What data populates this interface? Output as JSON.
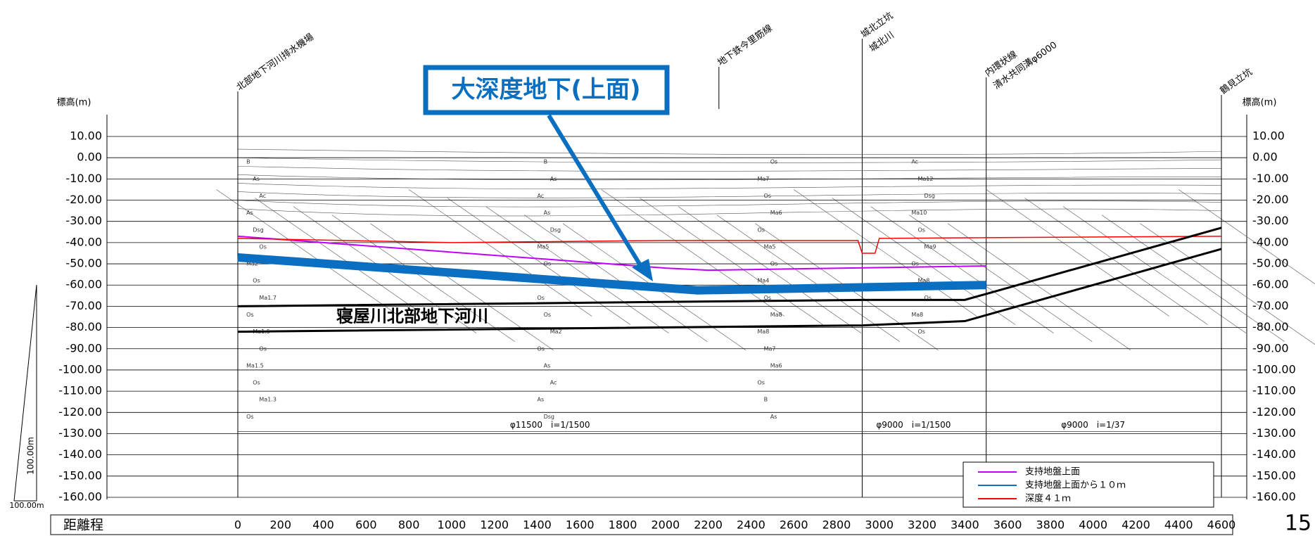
{
  "chart_data": {
    "type": "line",
    "y_axis_label": "標高(m)",
    "y2_axis_label": "標高(m)",
    "x_axis_label": "距離程",
    "callout": "大深度地下(上面)",
    "tunnel_label": "寝屋川北部地下河川",
    "sites": [
      "北部地下河川排水機場",
      "地下鉄今里筋線",
      "城北立坑",
      "城北川",
      "内環状線",
      "清水共同溝φ6000",
      "鶴見立坑"
    ],
    "pipe_labels": [
      "φ11500　i=1/1500",
      "φ9000　i=1/1500",
      "φ9000　i=1/37"
    ],
    "scale_labels": [
      "100.00m",
      "100.00m"
    ],
    "page_number": "15",
    "soil_labels": [
      "B",
      "As",
      "Ac",
      "As",
      "Dsg",
      "Os",
      "Ma2",
      "Os",
      "Ma1.7",
      "Os",
      "Ma1.5",
      "Os",
      "Ma1.5",
      "Os",
      "Ma1.3",
      "Os",
      "B",
      "As",
      "Ac",
      "As",
      "Dsg",
      "Ma5",
      "Os",
      "Ma4",
      "Os",
      "Os",
      "Ma2",
      "Os",
      "As",
      "Ac",
      "As",
      "Dsg",
      "Os",
      "Ma7",
      "Os",
      "Ma6",
      "Os",
      "Ma5",
      "Os",
      "Ma4",
      "Os",
      "Ma8",
      "Ma8",
      "Ma7",
      "Ma6",
      "Os",
      "B",
      "As",
      "Ac",
      "Ma12",
      "Dsg",
      "Ma10",
      "Os",
      "Ma9",
      "Os",
      "Ma8",
      "Os",
      "Ma8",
      "Os"
    ],
    "xlim": [
      0,
      4600
    ],
    "xticks": [
      0,
      200,
      400,
      600,
      800,
      1000,
      1200,
      1400,
      1600,
      1800,
      2000,
      2200,
      2400,
      2600,
      2800,
      3000,
      3200,
      3400,
      3600,
      3800,
      4000,
      4200,
      4400,
      4600
    ],
    "ylim": [
      10,
      -160
    ],
    "yticks": [
      {
        "value": 10,
        "label": "10.00"
      },
      {
        "value": 0,
        "label": "0.00"
      },
      {
        "value": -10,
        "label": "-10.00"
      },
      {
        "value": -20,
        "label": "-20.00"
      },
      {
        "value": -30,
        "label": "-30.00"
      },
      {
        "value": -40,
        "label": "-40.00"
      },
      {
        "value": -50,
        "label": "-50.00"
      },
      {
        "value": -60,
        "label": "-60.00"
      },
      {
        "value": -70,
        "label": "-70.00"
      },
      {
        "value": -80,
        "label": "-80.00"
      },
      {
        "value": -90,
        "label": "-90.00"
      },
      {
        "value": -100,
        "label": "-100.00"
      },
      {
        "value": -110,
        "label": "-110.00"
      },
      {
        "value": -120,
        "label": "-120.00"
      },
      {
        "value": -130,
        "label": "-130.00"
      },
      {
        "value": -140,
        "label": "-140.00"
      },
      {
        "value": -150,
        "label": "-150.00"
      },
      {
        "value": -160,
        "label": "-160.00"
      }
    ],
    "grid": true,
    "series": [
      {
        "name": "支持地盤上面",
        "color": "#c000ff",
        "x": [
          0,
          2000,
          2200,
          3500
        ],
        "values": [
          -37,
          -52,
          -53,
          -51
        ]
      },
      {
        "name": "支持地盤上面から１０ｍ",
        "color": "#0a6fc0",
        "x": [
          0,
          1950,
          2150,
          3500
        ],
        "values": [
          -47,
          -61,
          -62.5,
          -60
        ]
      },
      {
        "name": "深度４１ｍ",
        "color": "#ff0000",
        "x": [
          0,
          1000,
          2000,
          2900,
          2920,
          2980,
          3000,
          4600
        ],
        "values": [
          -38,
          -40,
          -39,
          -39,
          -45,
          -45,
          -38,
          -37
        ]
      },
      {
        "color": "#000000",
        "x": [
          0,
          2920,
          3400,
          4600
        ],
        "values": [
          -70,
          -67,
          -67,
          -33
        ]
      },
      {
        "color": "#000000",
        "x": [
          0,
          2920,
          3400,
          4600
        ],
        "values": [
          -82,
          -79,
          -77,
          -43
        ]
      }
    ]
  }
}
